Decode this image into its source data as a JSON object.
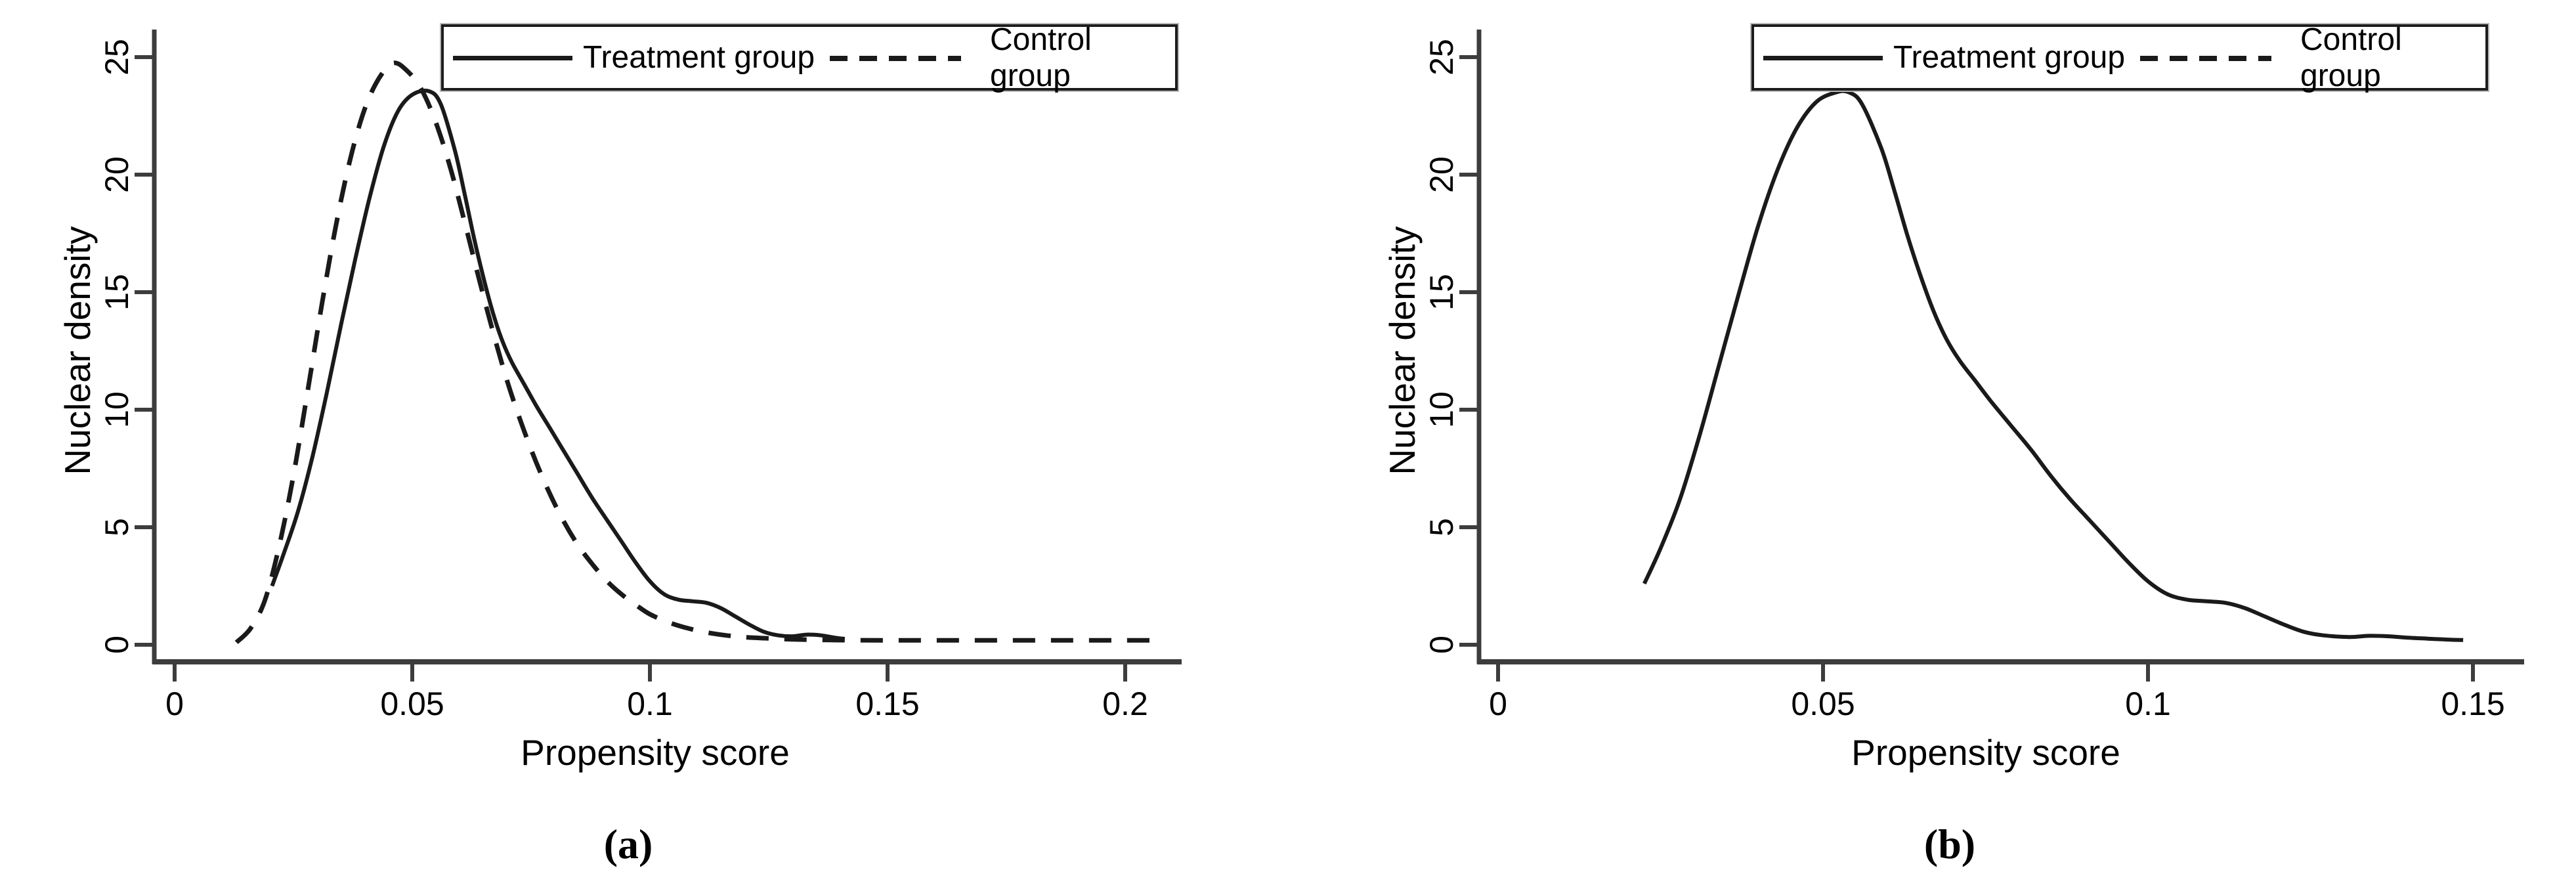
{
  "colors": {
    "curve": "#1a1a1a",
    "axis": "#3d3d3d",
    "text": "#000000",
    "background": "#ffffff"
  },
  "figure": {
    "panels": [
      {
        "id": "a",
        "caption": "(a)",
        "x_label": "Propensity score",
        "y_label": "Nuclear density",
        "x_tick_labels": [
          "0",
          "0.05",
          "0.1",
          "0.15",
          "0.2"
        ],
        "y_tick_labels": [
          "0",
          "5",
          "10",
          "15",
          "20",
          "25"
        ],
        "legend": {
          "treatment": "Treatment group",
          "control": "Control group"
        }
      },
      {
        "id": "b",
        "caption": "(b)",
        "x_label": "Propensity score",
        "y_label": "Nuclear density",
        "x_tick_labels": [
          "0",
          "0.05",
          "0.1",
          "0.15"
        ],
        "y_tick_labels": [
          "0",
          "5",
          "10",
          "15",
          "20",
          "25"
        ],
        "legend": {
          "treatment": "Treatment group",
          "control": "Control group"
        }
      }
    ]
  },
  "chart_data": [
    {
      "type": "line",
      "panel": "a",
      "title": "",
      "xlabel": "Propensity score",
      "ylabel": "Nuclear density",
      "xlim": [
        0,
        0.21
      ],
      "ylim": [
        0,
        25
      ],
      "x_ticks": [
        0,
        0.05,
        0.1,
        0.15,
        0.2
      ],
      "y_ticks": [
        0,
        5,
        10,
        15,
        20,
        25
      ],
      "grid": false,
      "legend_position": "top",
      "series": [
        {
          "name": "Treatment group",
          "line": "solid",
          "points": [
            [
              0.0205,
              2.5
            ],
            [
              0.023,
              3.9
            ],
            [
              0.026,
              5.7
            ],
            [
              0.029,
              8.0
            ],
            [
              0.032,
              10.7
            ],
            [
              0.035,
              13.6
            ],
            [
              0.038,
              16.4
            ],
            [
              0.041,
              19.0
            ],
            [
              0.044,
              21.2
            ],
            [
              0.047,
              22.7
            ],
            [
              0.05,
              23.4
            ],
            [
              0.0535,
              23.55
            ],
            [
              0.056,
              23.0
            ],
            [
              0.059,
              21.0
            ],
            [
              0.061,
              19.2
            ],
            [
              0.063,
              17.3
            ],
            [
              0.065,
              15.6
            ],
            [
              0.067,
              14.1
            ],
            [
              0.069,
              12.9
            ],
            [
              0.071,
              12.0
            ],
            [
              0.0735,
              11.1
            ],
            [
              0.076,
              10.2
            ],
            [
              0.079,
              9.2
            ],
            [
              0.082,
              8.2
            ],
            [
              0.085,
              7.2
            ],
            [
              0.088,
              6.2
            ],
            [
              0.091,
              5.3
            ],
            [
              0.094,
              4.4
            ],
            [
              0.097,
              3.5
            ],
            [
              0.1,
              2.7
            ],
            [
              0.103,
              2.15
            ],
            [
              0.106,
              1.92
            ],
            [
              0.109,
              1.85
            ],
            [
              0.112,
              1.78
            ],
            [
              0.115,
              1.55
            ],
            [
              0.118,
              1.2
            ],
            [
              0.121,
              0.85
            ],
            [
              0.124,
              0.55
            ],
            [
              0.127,
              0.4
            ],
            [
              0.13,
              0.36
            ],
            [
              0.133,
              0.43
            ],
            [
              0.136,
              0.4
            ],
            [
              0.139,
              0.3
            ],
            [
              0.141,
              0.25
            ]
          ]
        },
        {
          "name": "Control group",
          "line": "dashed",
          "points": [
            [
              0.013,
              0.1
            ],
            [
              0.016,
              0.7
            ],
            [
              0.019,
              1.9
            ],
            [
              0.022,
              4.2
            ],
            [
              0.025,
              7.2
            ],
            [
              0.028,
              10.8
            ],
            [
              0.031,
              14.5
            ],
            [
              0.034,
              17.9
            ],
            [
              0.037,
              20.7
            ],
            [
              0.04,
              22.8
            ],
            [
              0.043,
              24.1
            ],
            [
              0.046,
              24.75
            ],
            [
              0.049,
              24.4
            ],
            [
              0.052,
              23.6
            ],
            [
              0.055,
              22.2
            ],
            [
              0.058,
              20.3
            ],
            [
              0.061,
              18.0
            ],
            [
              0.064,
              15.6
            ],
            [
              0.067,
              13.3
            ],
            [
              0.07,
              11.2
            ],
            [
              0.073,
              9.4
            ],
            [
              0.076,
              7.8
            ],
            [
              0.079,
              6.4
            ],
            [
              0.082,
              5.2
            ],
            [
              0.085,
              4.2
            ],
            [
              0.088,
              3.4
            ],
            [
              0.091,
              2.7
            ],
            [
              0.094,
              2.15
            ],
            [
              0.097,
              1.7
            ],
            [
              0.1,
              1.3
            ],
            [
              0.104,
              0.95
            ],
            [
              0.108,
              0.7
            ],
            [
              0.112,
              0.52
            ],
            [
              0.116,
              0.4
            ],
            [
              0.12,
              0.32
            ],
            [
              0.125,
              0.27
            ],
            [
              0.13,
              0.23
            ],
            [
              0.138,
              0.2
            ],
            [
              0.148,
              0.19
            ],
            [
              0.158,
              0.19
            ],
            [
              0.168,
              0.19
            ],
            [
              0.178,
              0.19
            ],
            [
              0.188,
              0.19
            ],
            [
              0.198,
              0.19
            ],
            [
              0.207,
              0.19
            ]
          ]
        }
      ]
    },
    {
      "type": "line",
      "panel": "b",
      "title": "",
      "xlabel": "Propensity score",
      "ylabel": "Nuclear density",
      "xlim": [
        0,
        0.155
      ],
      "ylim": [
        0,
        25
      ],
      "x_ticks": [
        0,
        0.05,
        0.1,
        0.15
      ],
      "y_ticks": [
        0,
        5,
        10,
        15,
        20,
        25
      ],
      "grid": false,
      "legend_position": "top",
      "series": [
        {
          "name": "Treatment group",
          "line": "solid",
          "points": [
            [
              0.0225,
              2.6
            ],
            [
              0.025,
              4.1
            ],
            [
              0.028,
              6.2
            ],
            [
              0.031,
              8.9
            ],
            [
              0.034,
              11.9
            ],
            [
              0.037,
              14.9
            ],
            [
              0.04,
              17.8
            ],
            [
              0.043,
              20.2
            ],
            [
              0.046,
              22.0
            ],
            [
              0.049,
              23.1
            ],
            [
              0.052,
              23.5
            ],
            [
              0.054,
              23.5
            ],
            [
              0.056,
              23.0
            ],
            [
              0.059,
              21.1
            ],
            [
              0.061,
              19.3
            ],
            [
              0.063,
              17.4
            ],
            [
              0.065,
              15.7
            ],
            [
              0.067,
              14.2
            ],
            [
              0.069,
              13.0
            ],
            [
              0.071,
              12.1
            ],
            [
              0.0735,
              11.2
            ],
            [
              0.076,
              10.3
            ],
            [
              0.079,
              9.3
            ],
            [
              0.082,
              8.3
            ],
            [
              0.085,
              7.2
            ],
            [
              0.088,
              6.2
            ],
            [
              0.091,
              5.3
            ],
            [
              0.094,
              4.4
            ],
            [
              0.097,
              3.5
            ],
            [
              0.1,
              2.7
            ],
            [
              0.103,
              2.15
            ],
            [
              0.106,
              1.92
            ],
            [
              0.109,
              1.85
            ],
            [
              0.112,
              1.78
            ],
            [
              0.115,
              1.55
            ],
            [
              0.118,
              1.2
            ],
            [
              0.121,
              0.85
            ],
            [
              0.124,
              0.55
            ],
            [
              0.127,
              0.4
            ],
            [
              0.131,
              0.33
            ],
            [
              0.134,
              0.38
            ],
            [
              0.137,
              0.36
            ],
            [
              0.14,
              0.3
            ],
            [
              0.143,
              0.26
            ],
            [
              0.146,
              0.22
            ],
            [
              0.1485,
              0.2
            ]
          ]
        }
      ]
    }
  ]
}
